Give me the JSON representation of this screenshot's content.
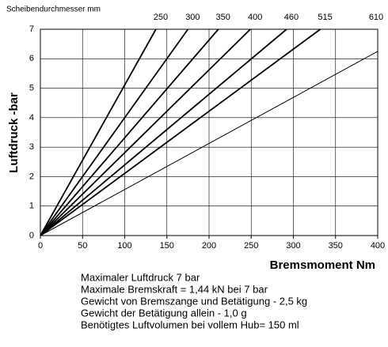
{
  "chart_data": {
    "type": "line",
    "legend_title": "Scheibendurchmesser mm",
    "ylabel": "Luftdruck -bar",
    "xlabel": "Bremsmoment Nm",
    "xlim": [
      0,
      400
    ],
    "xticks": [
      0,
      50,
      100,
      150,
      200,
      250,
      300,
      350,
      400
    ],
    "ylim": [
      0,
      7
    ],
    "yticks": [
      0,
      1,
      2,
      3,
      4,
      5,
      6,
      7
    ],
    "grid": true,
    "series": [
      {
        "name": "250",
        "color": "#000000",
        "linewidth": 1.8,
        "x": [
          0,
          137
        ],
        "values": [
          0,
          7
        ]
      },
      {
        "name": "300",
        "color": "#000000",
        "linewidth": 1.8,
        "x": [
          0,
          175
        ],
        "values": [
          0,
          7
        ]
      },
      {
        "name": "350",
        "color": "#000000",
        "linewidth": 1.8,
        "x": [
          0,
          211
        ],
        "values": [
          0,
          7
        ]
      },
      {
        "name": "400",
        "color": "#000000",
        "linewidth": 1.8,
        "x": [
          0,
          249
        ],
        "values": [
          0,
          7
        ]
      },
      {
        "name": "460",
        "color": "#000000",
        "linewidth": 1.8,
        "x": [
          0,
          292
        ],
        "values": [
          0,
          7
        ]
      },
      {
        "name": "515",
        "color": "#000000",
        "linewidth": 1.8,
        "x": [
          0,
          332
        ],
        "values": [
          0,
          7
        ]
      },
      {
        "name": "610",
        "color": "#000000",
        "linewidth": 1,
        "x": [
          0,
          400
        ],
        "values": [
          0,
          6.25
        ]
      }
    ],
    "notes": [
      "Maximaler Luftdruck 7 bar",
      "Maximale Bremskraft = 1,44 kN bei 7 bar",
      "Gewicht von Bremszange und Betätigung - 2,5 kg",
      "Gewicht der Betätigung allein - 1,0 g",
      "Benötigtes Luftvolumen bei vollem Hub= 150 ml"
    ]
  }
}
